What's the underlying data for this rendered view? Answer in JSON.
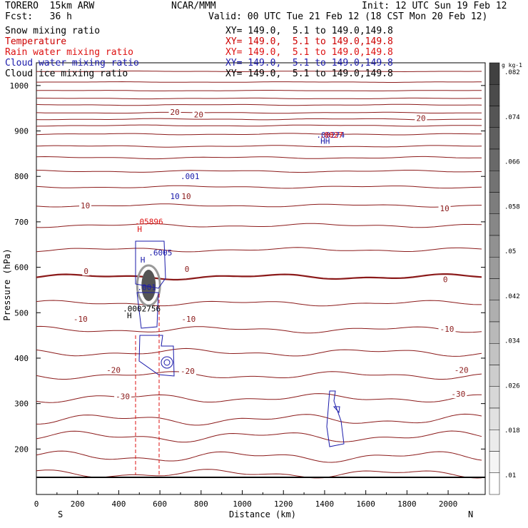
{
  "header": {
    "model": "TORERO  15km ARW",
    "center": "NCAR/MMM",
    "init": "Init: 12 UTC Sun 19 Feb 12",
    "fcst": "Fcst:   36 h",
    "valid": "Valid: 00 UTC Tue 21 Feb 12 (18 CST Mon 20 Feb 12)"
  },
  "fields": [
    {
      "name": "Snow mixing ratio",
      "xy": "XY= 149.0,  5.1 to 149.0,149.8",
      "color": "#000000"
    },
    {
      "name": "Temperature",
      "xy": "XY= 149.0,  5.1 to 149.0,149.8",
      "color": "#cc0000"
    },
    {
      "name": "Rain water mixing ratio",
      "xy": "XY= 149.0,  5.1 to 149.0,149.8",
      "color": "#dd1111"
    },
    {
      "name": "Cloud water mixing ratio",
      "xy": "XY= 149.0,  5.1 to 149.0,149.8",
      "color": "#1a1aaa"
    },
    {
      "name": "Cloud ice mixing ratio",
      "xy": "XY= 149.0,  5.1 to 149.0,149.8",
      "color": "#000000"
    }
  ],
  "chart_data": {
    "type": "contour",
    "xlabel": "Distance (km)",
    "ylabel": "Pressure (hPa)",
    "xlim": [
      0,
      2180
    ],
    "ylim": [
      1050,
      100
    ],
    "x_ticks": [
      0,
      200,
      400,
      600,
      800,
      1000,
      1200,
      1400,
      1600,
      1800,
      2000
    ],
    "y_ticks": [
      200,
      300,
      400,
      500,
      600,
      700,
      800,
      900,
      1000
    ],
    "x_end_labels": {
      "left": "S",
      "right": "N"
    },
    "colorbar": {
      "units": "g kg-1",
      "labels": [
        ".01",
        ".018",
        ".026",
        ".034",
        ".042",
        ".05",
        ".058",
        ".066",
        ".074",
        ".082"
      ]
    },
    "isotherm_labels": [
      {
        "text": "-30",
        "x": 385,
        "p": 310
      },
      {
        "text": "-30",
        "x": 2015,
        "p": 315
      },
      {
        "text": "-20",
        "x": 340,
        "p": 368
      },
      {
        "text": "-20",
        "x": 700,
        "p": 365
      },
      {
        "text": "-20",
        "x": 2030,
        "p": 368
      },
      {
        "text": "-10",
        "x": 180,
        "p": 480
      },
      {
        "text": "-10",
        "x": 705,
        "p": 480
      },
      {
        "text": "-10",
        "x": 1960,
        "p": 458
      },
      {
        "text": "0",
        "x": 230,
        "p": 585
      },
      {
        "text": "0",
        "x": 720,
        "p": 590
      },
      {
        "text": "0",
        "x": 1975,
        "p": 567
      },
      {
        "text": "10",
        "x": 215,
        "p": 730
      },
      {
        "text": "10",
        "x": 705,
        "p": 750
      },
      {
        "text": "10",
        "x": 1960,
        "p": 723
      },
      {
        "text": "20",
        "x": 650,
        "p": 935
      },
      {
        "text": "20",
        "x": 765,
        "p": 930
      },
      {
        "text": "20",
        "x": 1845,
        "p": 922
      }
    ],
    "extrema": [
      {
        "text": "H",
        "x": 440,
        "p": 488,
        "color": "#000000"
      },
      {
        "text": ".0002756",
        "x": 420,
        "p": 503,
        "color": "#000000"
      },
      {
        "text": ".001",
        "x": 490,
        "p": 550,
        "color": "#1a1aaa"
      },
      {
        "text": "H",
        "x": 505,
        "p": 610,
        "color": "#1a1aaa"
      },
      {
        "text": ".6005",
        "x": 545,
        "p": 626,
        "color": "#1a1aaa"
      },
      {
        "text": "H",
        "x": 490,
        "p": 678,
        "color": "#dd1111"
      },
      {
        "text": ".05896",
        "x": 478,
        "p": 694,
        "color": "#dd1111"
      },
      {
        "text": "10",
        "x": 650,
        "p": 750,
        "color": "#1a1aaa"
      },
      {
        "text": ".001",
        "x": 700,
        "p": 794,
        "color": "#1a1aaa"
      },
      {
        "text": "HH",
        "x": 1380,
        "p": 872,
        "color": "#1a1aaa"
      },
      {
        "text": ".00274",
        "x": 1360,
        "p": 885,
        "color": "#1a1aaa"
      },
      {
        "text": ".0027",
        "x": 1375,
        "p": 885,
        "color": "#dd1111"
      }
    ]
  }
}
